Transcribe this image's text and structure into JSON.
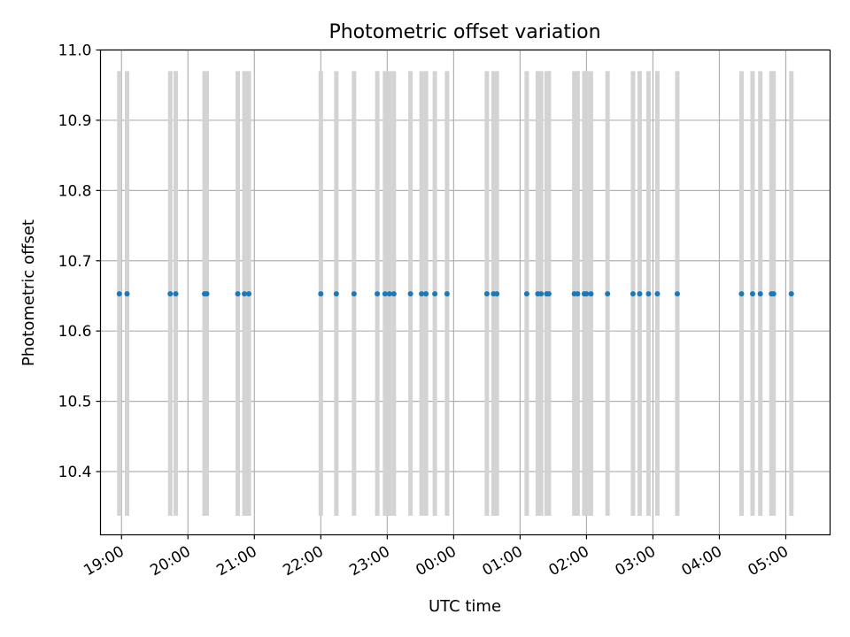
{
  "chart_data": {
    "type": "scatter",
    "title": "Photometric offset variation",
    "xlabel": "UTC time",
    "ylabel": "Photometric offset",
    "x_axis": {
      "kind": "time",
      "range": [
        "18:41",
        "05:40"
      ],
      "ticks": [
        "19:00",
        "20:00",
        "21:00",
        "22:00",
        "23:00",
        "00:00",
        "01:00",
        "02:00",
        "03:00",
        "04:00",
        "05:00"
      ]
    },
    "y_axis": {
      "range": [
        10.31,
        11.0
      ],
      "ticks": [
        "10.4",
        "10.5",
        "10.6",
        "10.7",
        "10.8",
        "10.9",
        "11.0"
      ]
    },
    "grid": true,
    "series": [
      {
        "color": "#1f77b4",
        "x": [
          "18:58",
          "19:05",
          "19:44",
          "19:49",
          "20:15",
          "20:17",
          "20:45",
          "20:51",
          "20:55",
          "22:00",
          "22:14",
          "22:30",
          "22:51",
          "22:58",
          "23:02",
          "23:06",
          "23:21",
          "23:31",
          "23:35",
          "23:43",
          "23:54",
          "00:30",
          "00:36",
          "00:39",
          "01:06",
          "01:16",
          "01:19",
          "01:24",
          "01:26",
          "01:49",
          "01:52",
          "01:58",
          "02:00",
          "02:04",
          "02:19",
          "02:42",
          "02:48",
          "02:56",
          "03:04",
          "03:22",
          "04:20",
          "04:30",
          "04:37",
          "04:47",
          "04:49",
          "05:05"
        ],
        "y": [
          10.653,
          10.653,
          10.653,
          10.653,
          10.653,
          10.653,
          10.653,
          10.653,
          10.653,
          10.653,
          10.653,
          10.653,
          10.653,
          10.653,
          10.653,
          10.653,
          10.653,
          10.653,
          10.653,
          10.653,
          10.653,
          10.653,
          10.653,
          10.653,
          10.653,
          10.653,
          10.653,
          10.653,
          10.653,
          10.653,
          10.653,
          10.653,
          10.653,
          10.653,
          10.653,
          10.653,
          10.653,
          10.653,
          10.653,
          10.653,
          10.653,
          10.653,
          10.653,
          10.653,
          10.653,
          10.653
        ]
      }
    ],
    "error_bars": {
      "color": "#d3d3d3",
      "low": 10.337,
      "high": 10.97
    }
  }
}
